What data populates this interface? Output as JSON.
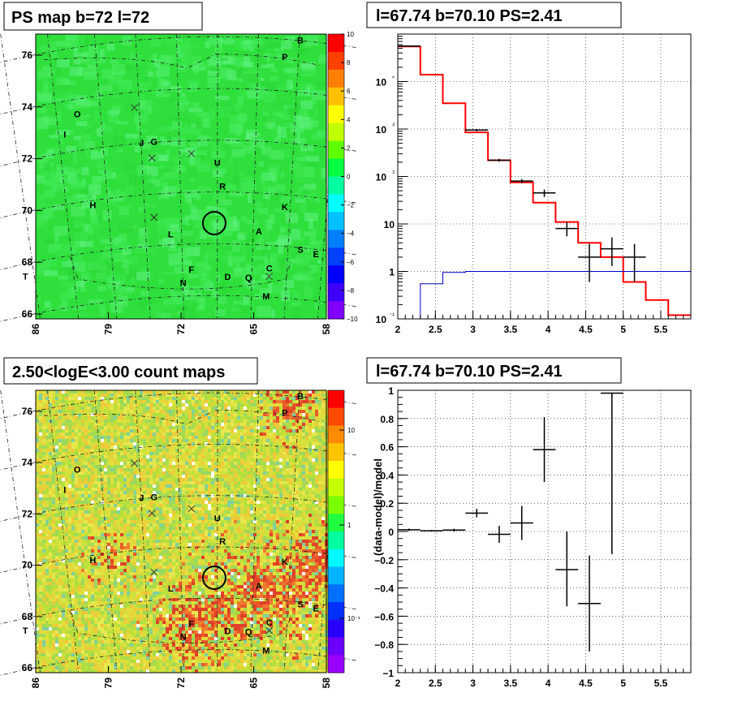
{
  "panels": {
    "ps_map": {
      "title": "PS map b=72 l=72",
      "yticks": [
        "76",
        "74",
        "72",
        "70",
        "68",
        "66"
      ],
      "xticks": [
        "86",
        "79",
        "72",
        "65",
        "58"
      ],
      "colorbar_ticks": [
        "10",
        "8",
        "6",
        "4",
        "2",
        "0",
        "−2",
        "−4",
        "−6",
        "−8",
        "−10"
      ],
      "sources": [
        {
          "name": "B",
          "lon": 60.5,
          "lat": 76.3
        },
        {
          "name": "P",
          "lon": 62.0,
          "lat": 75.6
        },
        {
          "name": "O",
          "lon": 82.0,
          "lat": 73.7
        },
        {
          "name": "I",
          "lon": 83.2,
          "lat": 73.0
        },
        {
          "name": "J",
          "lon": 75.8,
          "lat": 72.3
        },
        {
          "name": "G",
          "lon": 74.6,
          "lat": 72.3
        },
        {
          "name": "U",
          "lon": 68.5,
          "lat": 71.4
        },
        {
          "name": "R",
          "lon": 68.0,
          "lat": 70.5
        },
        {
          "name": "H",
          "lon": 80.5,
          "lat": 70.1
        },
        {
          "name": "K",
          "lon": 62.0,
          "lat": 69.8
        },
        {
          "name": "A",
          "lon": 64.5,
          "lat": 68.8
        },
        {
          "name": "L",
          "lon": 73.0,
          "lat": 68.7
        },
        {
          "name": "T",
          "lon": 87.0,
          "lat": 67.8
        },
        {
          "name": "S",
          "lon": 60.5,
          "lat": 68.2
        },
        {
          "name": "E",
          "lon": 59.0,
          "lat": 68.1
        },
        {
          "name": "F",
          "lon": 71.0,
          "lat": 67.3
        },
        {
          "name": "D",
          "lon": 67.5,
          "lat": 67.0
        },
        {
          "name": "Q",
          "lon": 65.5,
          "lat": 67.0
        },
        {
          "name": "C",
          "lon": 63.5,
          "lat": 67.4
        },
        {
          "name": "N",
          "lon": 71.8,
          "lat": 66.8
        },
        {
          "name": "M",
          "lon": 63.8,
          "lat": 66.3
        }
      ],
      "crosses": [
        {
          "lon": 76.5,
          "lat": 73.8
        },
        {
          "lon": 74.8,
          "lat": 71.8
        },
        {
          "lon": 71.0,
          "lat": 71.9
        },
        {
          "lon": 74.6,
          "lat": 69.5
        },
        {
          "lon": 63.5,
          "lat": 67.2
        }
      ],
      "circle": {
        "lon": 68.8,
        "lat": 69.2
      }
    },
    "count_map": {
      "title": "2.50<logE<3.00 count maps",
      "yticks": [
        "76",
        "74",
        "72",
        "70",
        "68",
        "66"
      ],
      "xticks": [
        "86",
        "79",
        "72",
        "65",
        "58"
      ],
      "colorbar_ticks": [
        "10",
        "1",
        "10⁻¹"
      ]
    },
    "spectrum": {
      "title": "l=67.74 b=70.10 PS=2.41"
    },
    "residual": {
      "title": "l=67.74 b=70.10 PS=2.41"
    }
  },
  "chart_data": [
    {
      "type": "heatmap",
      "title": "PS map b=72 l=72",
      "xlim": [
        86,
        58
      ],
      "ylim": [
        65.5,
        76.5
      ],
      "colorbar_range": [
        -10,
        10
      ],
      "colors": {
        "background": "#2ee23a",
        "spots": "#4dee70"
      }
    },
    {
      "type": "heatmap",
      "title": "2.50<logE<3.00 count maps",
      "xlim": [
        86,
        58
      ],
      "ylim": [
        65.5,
        76.5
      ],
      "colorbar_scale": "log",
      "colors": {
        "background": "#d9e03a",
        "hot": "#e8502a"
      }
    },
    {
      "type": "line",
      "title": "l=67.74 b=70.10 PS=2.41",
      "xlim": [
        2,
        5.9
      ],
      "ylim": [
        0.1,
        100000
      ],
      "yscale": "log",
      "xticks": [
        "2",
        "2.5",
        "3",
        "3.5",
        "4",
        "4.5",
        "5",
        "5.5"
      ],
      "yticks": [
        "10⁻¹",
        "1",
        "10",
        "10²",
        "10³",
        "10⁴"
      ],
      "grid": true,
      "series": [
        {
          "kind": "step",
          "color": "#ff0000",
          "edges": [
            2.0,
            2.3,
            2.6,
            2.9,
            3.2,
            3.5,
            3.8,
            4.1,
            4.4,
            4.7,
            5.0,
            5.3,
            5.6,
            5.9
          ],
          "values": [
            55000,
            14000,
            3500,
            850,
            220,
            75,
            28,
            11,
            4,
            2,
            0.6,
            0.25,
            0.12
          ]
        },
        {
          "kind": "step",
          "color": "#0000cc",
          "edges": [
            2.0,
            2.3,
            2.6,
            2.9,
            3.2,
            3.5,
            3.8,
            4.1,
            4.4,
            4.7,
            5.0,
            5.3,
            5.6,
            5.9
          ],
          "values": [
            0.1,
            0.55,
            0.95,
            1.0,
            1.0,
            1.0,
            1.0,
            1.0,
            1.0,
            1.0,
            1.0,
            1.0,
            1.0
          ]
        },
        {
          "kind": "errorbar",
          "color": "#000000",
          "points": [
            {
              "x": 2.15,
              "xerr": 0.15,
              "y": 56000,
              "ylo": 55000,
              "yhi": 57000
            },
            {
              "x": 3.05,
              "xerr": 0.15,
              "y": 950,
              "ylo": 900,
              "yhi": 1000
            },
            {
              "x": 3.35,
              "xerr": 0.15,
              "y": 220,
              "ylo": 205,
              "yhi": 235
            },
            {
              "x": 3.65,
              "xerr": 0.15,
              "y": 80,
              "ylo": 72,
              "yhi": 88
            },
            {
              "x": 3.95,
              "xerr": 0.15,
              "y": 45,
              "ylo": 37,
              "yhi": 53
            },
            {
              "x": 4.25,
              "xerr": 0.15,
              "y": 8,
              "ylo": 5.5,
              "yhi": 11
            },
            {
              "x": 4.55,
              "xerr": 0.15,
              "y": 2,
              "ylo": 0.6,
              "yhi": 3.8
            },
            {
              "x": 4.85,
              "xerr": 0.15,
              "y": 3,
              "ylo": 1.3,
              "yhi": 5.2
            },
            {
              "x": 5.15,
              "xerr": 0.15,
              "y": 2,
              "ylo": 0.6,
              "yhi": 3.8
            }
          ]
        }
      ]
    },
    {
      "type": "scatter",
      "title": "l=67.74 b=70.10 PS=2.41",
      "ylabel": "(data-model)/model",
      "xlim": [
        2,
        5.9
      ],
      "ylim": [
        -1,
        1
      ],
      "xticks": [
        "2",
        "2.5",
        "3",
        "3.5",
        "4",
        "4.5",
        "5",
        "5.5"
      ],
      "yticks": [
        "−1",
        "−0.8",
        "−0.6",
        "−0.4",
        "−0.2",
        "0",
        "0.2",
        "0.4",
        "0.6",
        "0.8",
        "1"
      ],
      "grid": true,
      "points": [
        {
          "x": 2.15,
          "xerr": 0.15,
          "y": 0.012,
          "ylo": 0.004,
          "yhi": 0.02
        },
        {
          "x": 2.45,
          "xerr": 0.15,
          "y": 0.005,
          "ylo": 0.0,
          "yhi": 0.01
        },
        {
          "x": 2.75,
          "xerr": 0.15,
          "y": 0.01,
          "ylo": 0.0,
          "yhi": 0.02
        },
        {
          "x": 3.05,
          "xerr": 0.15,
          "y": 0.13,
          "ylo": 0.1,
          "yhi": 0.16
        },
        {
          "x": 3.35,
          "xerr": 0.15,
          "y": -0.02,
          "ylo": -0.08,
          "yhi": 0.04
        },
        {
          "x": 3.65,
          "xerr": 0.15,
          "y": 0.06,
          "ylo": -0.06,
          "yhi": 0.18
        },
        {
          "x": 3.95,
          "xerr": 0.15,
          "y": 0.58,
          "ylo": 0.35,
          "yhi": 0.81
        },
        {
          "x": 4.25,
          "xerr": 0.15,
          "y": -0.27,
          "ylo": -0.53,
          "yhi": 0.0
        },
        {
          "x": 4.55,
          "xerr": 0.15,
          "y": -0.51,
          "ylo": -0.85,
          "yhi": -0.17
        },
        {
          "x": 4.85,
          "xerr": 0.15,
          "y": 0.98,
          "ylo": -0.16,
          "yhi": 0.98
        }
      ]
    }
  ]
}
